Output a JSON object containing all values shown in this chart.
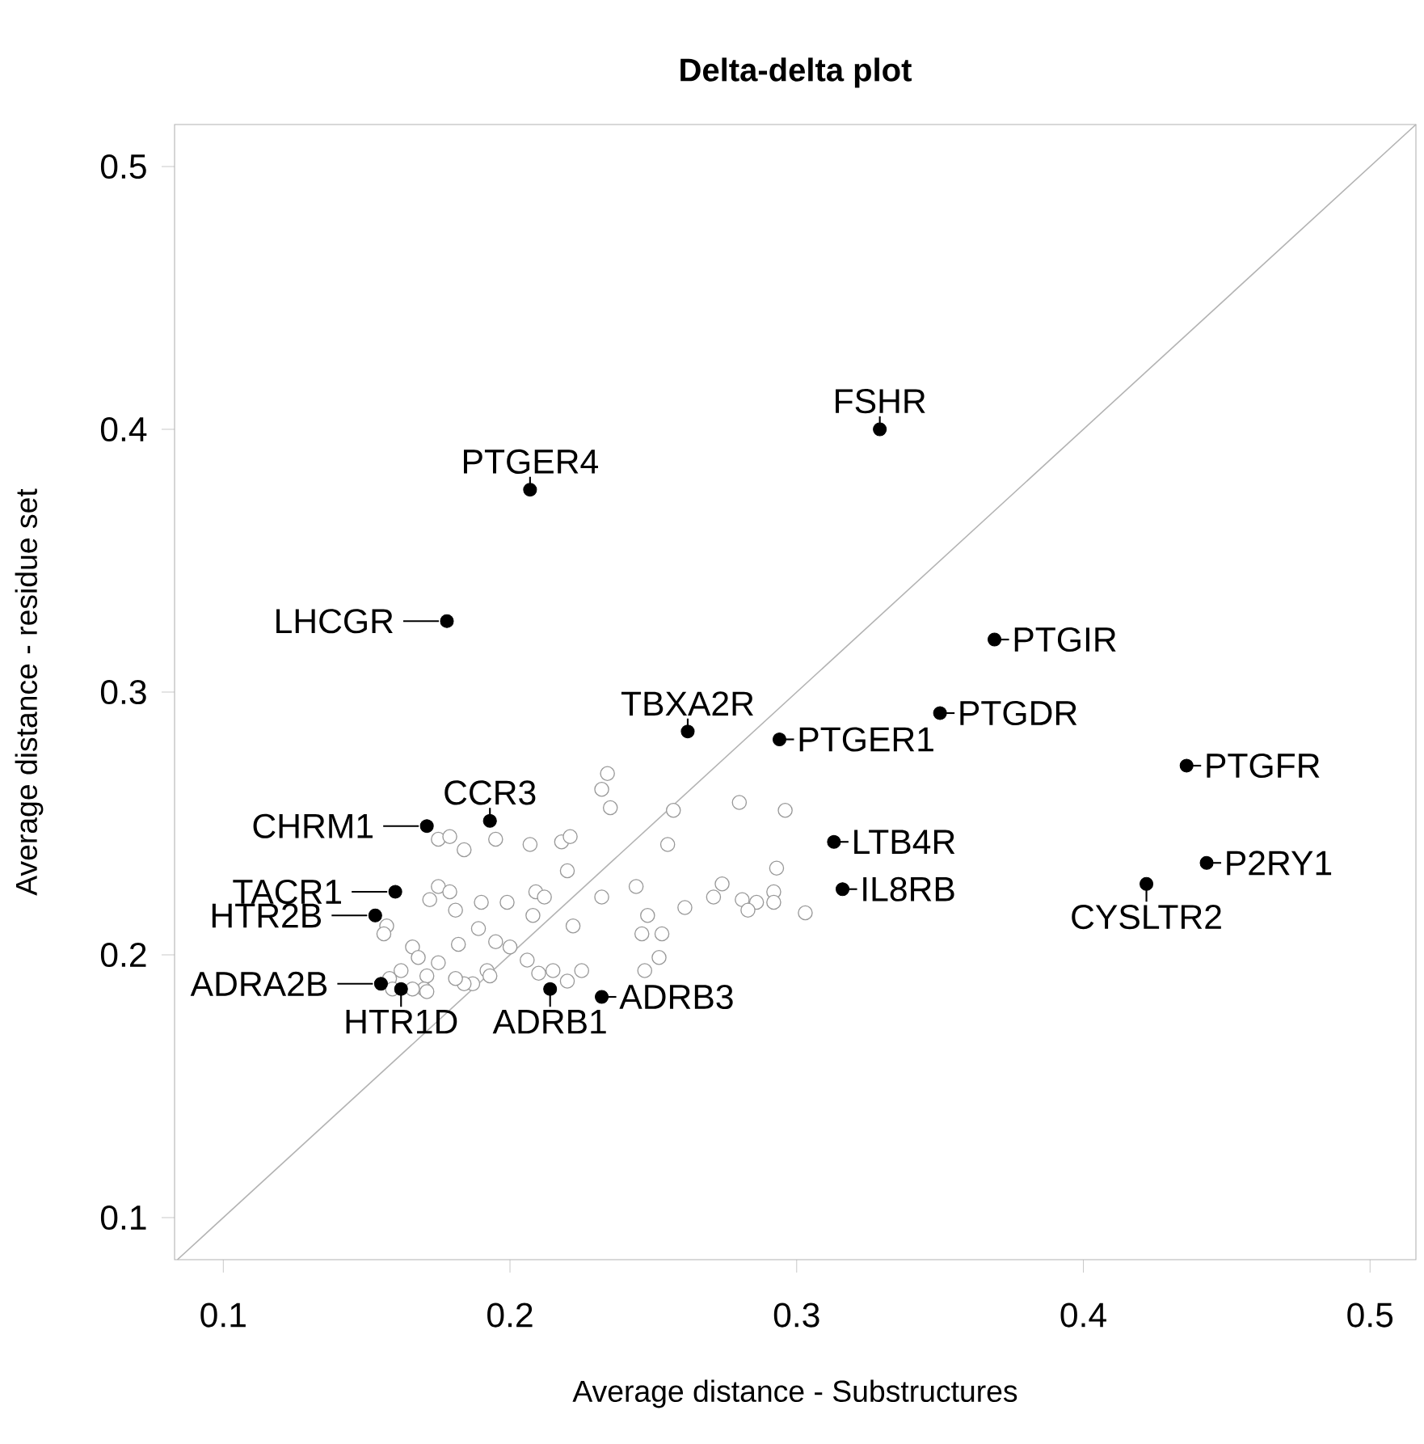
{
  "chart_data": {
    "type": "scatter",
    "title": "Delta-delta plot",
    "xlabel": "Average distance - Substructures",
    "ylabel": "Average distance - residue set",
    "xlim": [
      0.083,
      0.516
    ],
    "ylim": [
      0.084,
      0.516
    ],
    "xticks": [
      0.1,
      0.2,
      0.3,
      0.4,
      0.5
    ],
    "yticks": [
      0.1,
      0.2,
      0.3,
      0.4,
      0.5
    ],
    "grid": false,
    "marker": "circle",
    "series": [
      {
        "type": "line",
        "color": "#b3b3b3",
        "marker": "none",
        "x": [
          0.084,
          0.516
        ],
        "values": [
          0.084,
          0.516
        ]
      },
      {
        "color": "#999999",
        "x": [
          0.234,
          0.232,
          0.235,
          0.257,
          0.255,
          0.28,
          0.296,
          0.175,
          0.179,
          0.184,
          0.195,
          0.207,
          0.218,
          0.221,
          0.22,
          0.175,
          0.172,
          0.179,
          0.181,
          0.19,
          0.199,
          0.208,
          0.209,
          0.212,
          0.232,
          0.244,
          0.248,
          0.222,
          0.261,
          0.271,
          0.274,
          0.293,
          0.292,
          0.292,
          0.281,
          0.286,
          0.283,
          0.303,
          0.246,
          0.253,
          0.252,
          0.247,
          0.225,
          0.22,
          0.215,
          0.21,
          0.206,
          0.2,
          0.195,
          0.189,
          0.182,
          0.192,
          0.193,
          0.187,
          0.184,
          0.181,
          0.166,
          0.168,
          0.175,
          0.171,
          0.17,
          0.162,
          0.158,
          0.166,
          0.157,
          0.156,
          0.171,
          0.159
        ],
        "values": [
          0.269,
          0.263,
          0.256,
          0.255,
          0.242,
          0.258,
          0.255,
          0.244,
          0.245,
          0.24,
          0.244,
          0.242,
          0.243,
          0.245,
          0.232,
          0.226,
          0.221,
          0.224,
          0.217,
          0.22,
          0.22,
          0.215,
          0.224,
          0.222,
          0.222,
          0.226,
          0.215,
          0.211,
          0.218,
          0.222,
          0.227,
          0.233,
          0.224,
          0.22,
          0.221,
          0.22,
          0.217,
          0.216,
          0.208,
          0.208,
          0.199,
          0.194,
          0.194,
          0.19,
          0.194,
          0.193,
          0.198,
          0.203,
          0.205,
          0.21,
          0.204,
          0.194,
          0.192,
          0.189,
          0.189,
          0.191,
          0.203,
          0.199,
          0.197,
          0.192,
          0.187,
          0.194,
          0.191,
          0.187,
          0.211,
          0.208,
          0.186,
          0.187
        ]
      },
      {
        "color": "#000000",
        "x": [
          0.329,
          0.207,
          0.178,
          0.369,
          0.262,
          0.294,
          0.35,
          0.436,
          0.313,
          0.316,
          0.443,
          0.422,
          0.193,
          0.171,
          0.16,
          0.153,
          0.155,
          0.162,
          0.214,
          0.232
        ],
        "values": [
          0.4,
          0.377,
          0.327,
          0.32,
          0.285,
          0.282,
          0.292,
          0.272,
          0.243,
          0.225,
          0.235,
          0.227,
          0.251,
          0.249,
          0.224,
          0.215,
          0.189,
          0.187,
          0.187,
          0.184
        ]
      }
    ],
    "annotations": [
      {
        "text": "FSHR",
        "x": 0.329,
        "y": 0.4
      },
      {
        "text": "PTGER4",
        "x": 0.207,
        "y": 0.377
      },
      {
        "text": "LHCGR",
        "x": 0.178,
        "y": 0.327
      },
      {
        "text": "PTGIR",
        "x": 0.369,
        "y": 0.32
      },
      {
        "text": "TBXA2R",
        "x": 0.262,
        "y": 0.285
      },
      {
        "text": "PTGER1",
        "x": 0.294,
        "y": 0.282
      },
      {
        "text": "PTGDR",
        "x": 0.35,
        "y": 0.292
      },
      {
        "text": "PTGFR",
        "x": 0.436,
        "y": 0.272
      },
      {
        "text": "LTB4R",
        "x": 0.313,
        "y": 0.243
      },
      {
        "text": "IL8RB",
        "x": 0.316,
        "y": 0.225
      },
      {
        "text": "P2RY1",
        "x": 0.443,
        "y": 0.235
      },
      {
        "text": "CYSLTR2",
        "x": 0.422,
        "y": 0.227
      },
      {
        "text": "CCR3",
        "x": 0.193,
        "y": 0.251
      },
      {
        "text": "CHRM1",
        "x": 0.171,
        "y": 0.249
      },
      {
        "text": "TACR1",
        "x": 0.16,
        "y": 0.224
      },
      {
        "text": "HTR2B",
        "x": 0.153,
        "y": 0.215
      },
      {
        "text": "ADRA2B",
        "x": 0.155,
        "y": 0.189
      },
      {
        "text": "HTR1D",
        "x": 0.162,
        "y": 0.187
      },
      {
        "text": "ADRB1",
        "x": 0.214,
        "y": 0.187
      },
      {
        "text": "ADRB3",
        "x": 0.232,
        "y": 0.184
      }
    ]
  }
}
